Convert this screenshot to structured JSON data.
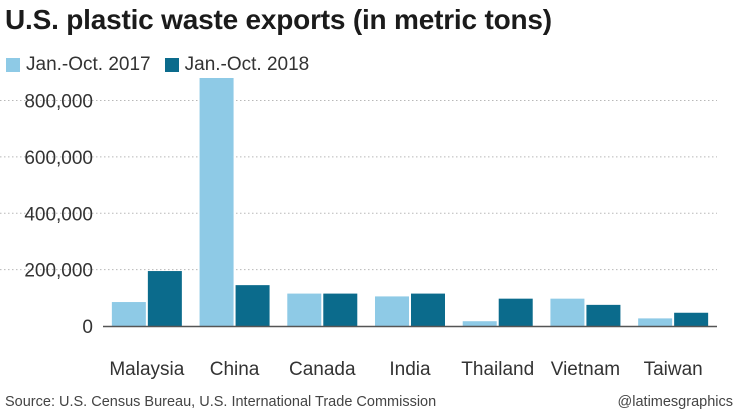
{
  "chart_data": {
    "type": "bar",
    "title": "U.S. plastic waste exports (in metric tons)",
    "categories": [
      "Malaysia",
      "China",
      "Canada",
      "India",
      "Thailand",
      "Vietnam",
      "Taiwan"
    ],
    "series": [
      {
        "name": "Jan.-Oct. 2017",
        "color": "#8ecae6",
        "values": [
          85000,
          880000,
          115000,
          105000,
          17000,
          97000,
          27000
        ]
      },
      {
        "name": "Jan.-Oct. 2018",
        "color": "#0b6b8c",
        "values": [
          195000,
          145000,
          115000,
          115000,
          97000,
          75000,
          47000
        ]
      }
    ],
    "ylim": [
      0,
      880000
    ],
    "yticks": [
      0,
      200000,
      400000,
      600000,
      800000
    ],
    "ytick_labels": [
      "0",
      "200,000",
      "400,000",
      "600,000",
      "800,000"
    ],
    "grid": true,
    "legend_position": "top-left",
    "xlabel": "",
    "ylabel": ""
  },
  "footer": {
    "source": "Source: U.S. Census Bureau, U.S. International Trade Commission",
    "credit": "@latimesgraphics"
  }
}
